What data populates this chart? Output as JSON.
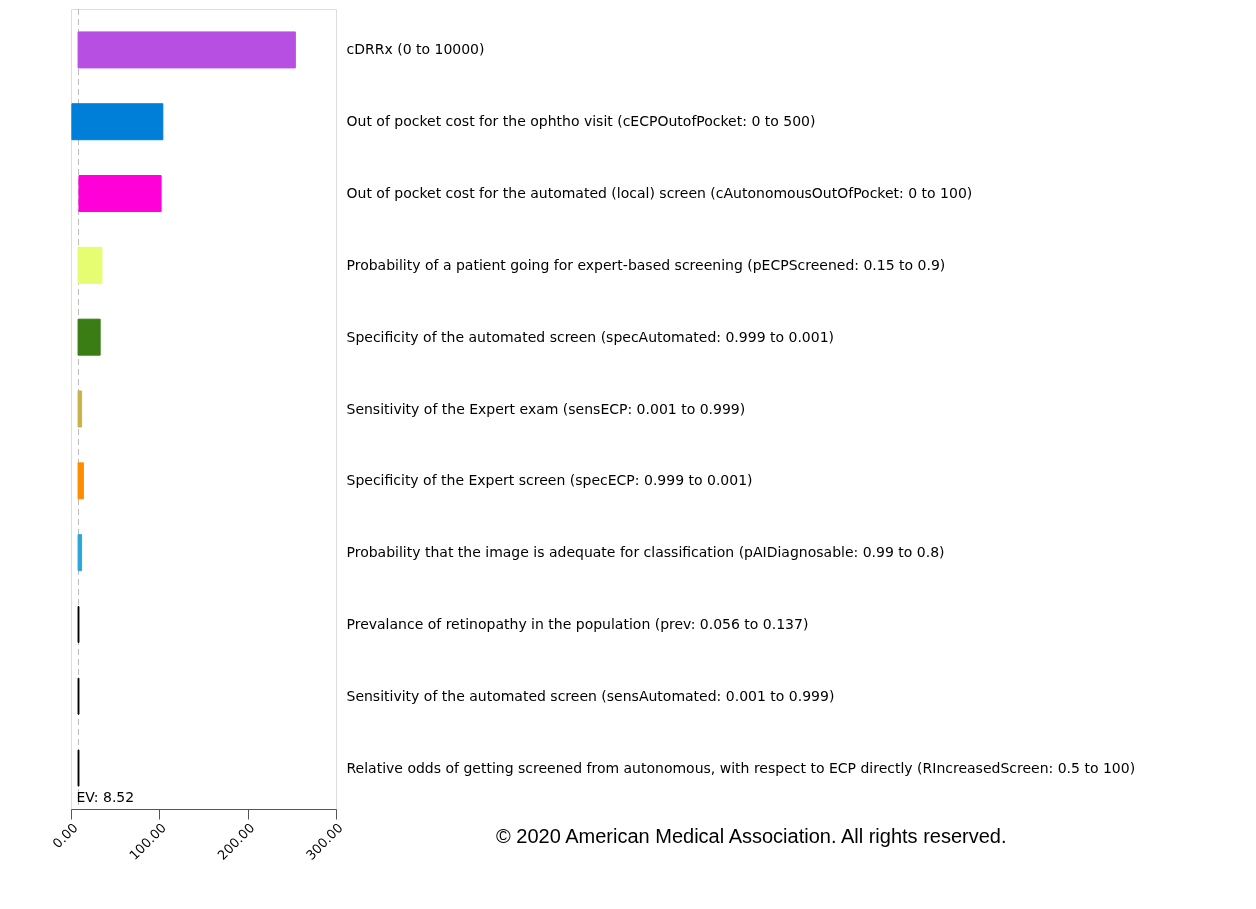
{
  "chart_data": {
    "type": "bar",
    "orientation": "horizontal",
    "categories": [
      "cDRRx (0 to 10000)",
      "Out of pocket cost for the ophtho visit (cECPOutofPocket: 0 to 500)",
      "Out of pocket cost for the automated (local) screen (cAutonomousOutOfPocket: 0 to 100)",
      "Probability of a patient going for expert-based screening (pECPScreened: 0.15 to 0.9)",
      "Specificity of the automated screen (specAutomated: 0.999 to 0.001)",
      "Sensitivity of the Expert exam (sensECP: 0.001 to 0.999)",
      "Specificity of the Expert screen (specECP: 0.999 to 0.001)",
      "Probability that the image is adequate for classification (pAIDiagnosable: 0.99 to 0.8)",
      "Prevalance of retinopathy in the population (prev: 0.056 to 0.137)",
      "Sensitivity of the automated screen (sensAutomated: 0.001 to 0.999)",
      "Relative odds of getting screened from autonomous, with respect to ECP directly (RIncreasedScreen: 0.5 to 100)"
    ],
    "base": [
      8,
      1,
      9,
      8,
      8,
      8,
      8,
      8,
      8,
      8,
      8
    ],
    "values": [
      246,
      103,
      93,
      27,
      25,
      4,
      6,
      4,
      1,
      1,
      1
    ],
    "colors": [
      "#b84fe3",
      "#007fd9",
      "#ff00d8",
      "#e6fd72",
      "#3a7d14",
      "#c8b34a",
      "#ff8c00",
      "#2aa7d8",
      "#000000",
      "#000000",
      "#000000"
    ],
    "xlim": [
      0,
      300
    ],
    "xticks": [
      {
        "value": 0,
        "label": "0.00"
      },
      {
        "value": 100,
        "label": "100.00"
      },
      {
        "value": 200,
        "label": "200.00"
      },
      {
        "value": 300,
        "label": "300.00"
      }
    ],
    "ref_lines": [
      {
        "axis": "x",
        "value": 8.52,
        "label": "EV: 8.52",
        "color": "#bbbbbb",
        "line_style": "dashed"
      }
    ],
    "annotations": [
      "© 2020 American Medical Association. All rights reserved."
    ],
    "grid": false
  }
}
